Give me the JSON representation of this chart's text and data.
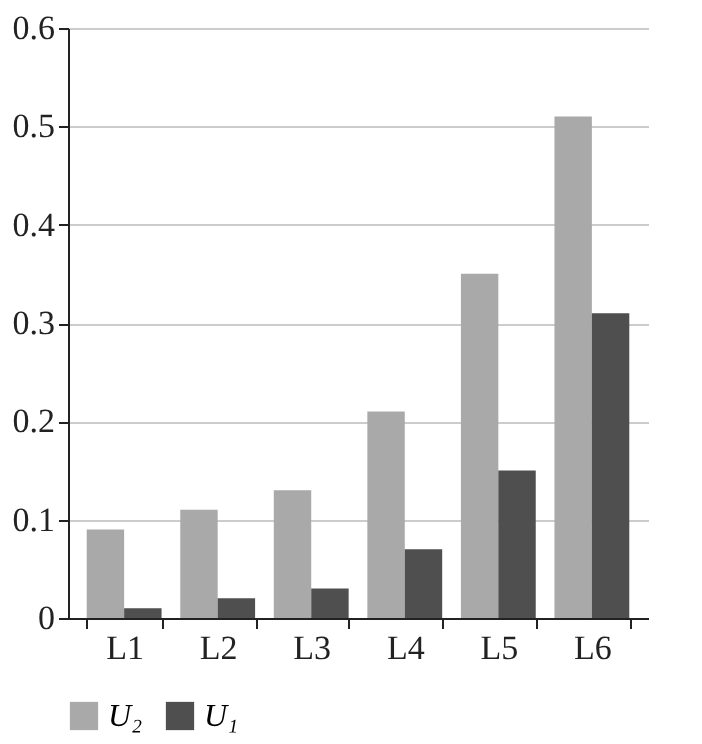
{
  "chart_data": {
    "type": "bar",
    "categories": [
      "L1",
      "L2",
      "L3",
      "L4",
      "L5",
      "L6"
    ],
    "series": [
      {
        "name": "U₂",
        "color": "#a9a9a9",
        "values": [
          0.09,
          0.11,
          0.13,
          0.21,
          0.35,
          0.51
        ]
      },
      {
        "name": "U₁",
        "color": "#4f4f4f",
        "values": [
          0.01,
          0.02,
          0.03,
          0.07,
          0.15,
          0.31
        ]
      }
    ],
    "ylim": [
      0,
      0.6
    ],
    "yticks": [
      0,
      0.1,
      0.2,
      0.3,
      0.4,
      0.5,
      0.6
    ],
    "grid": "y",
    "legend": "bottom"
  }
}
